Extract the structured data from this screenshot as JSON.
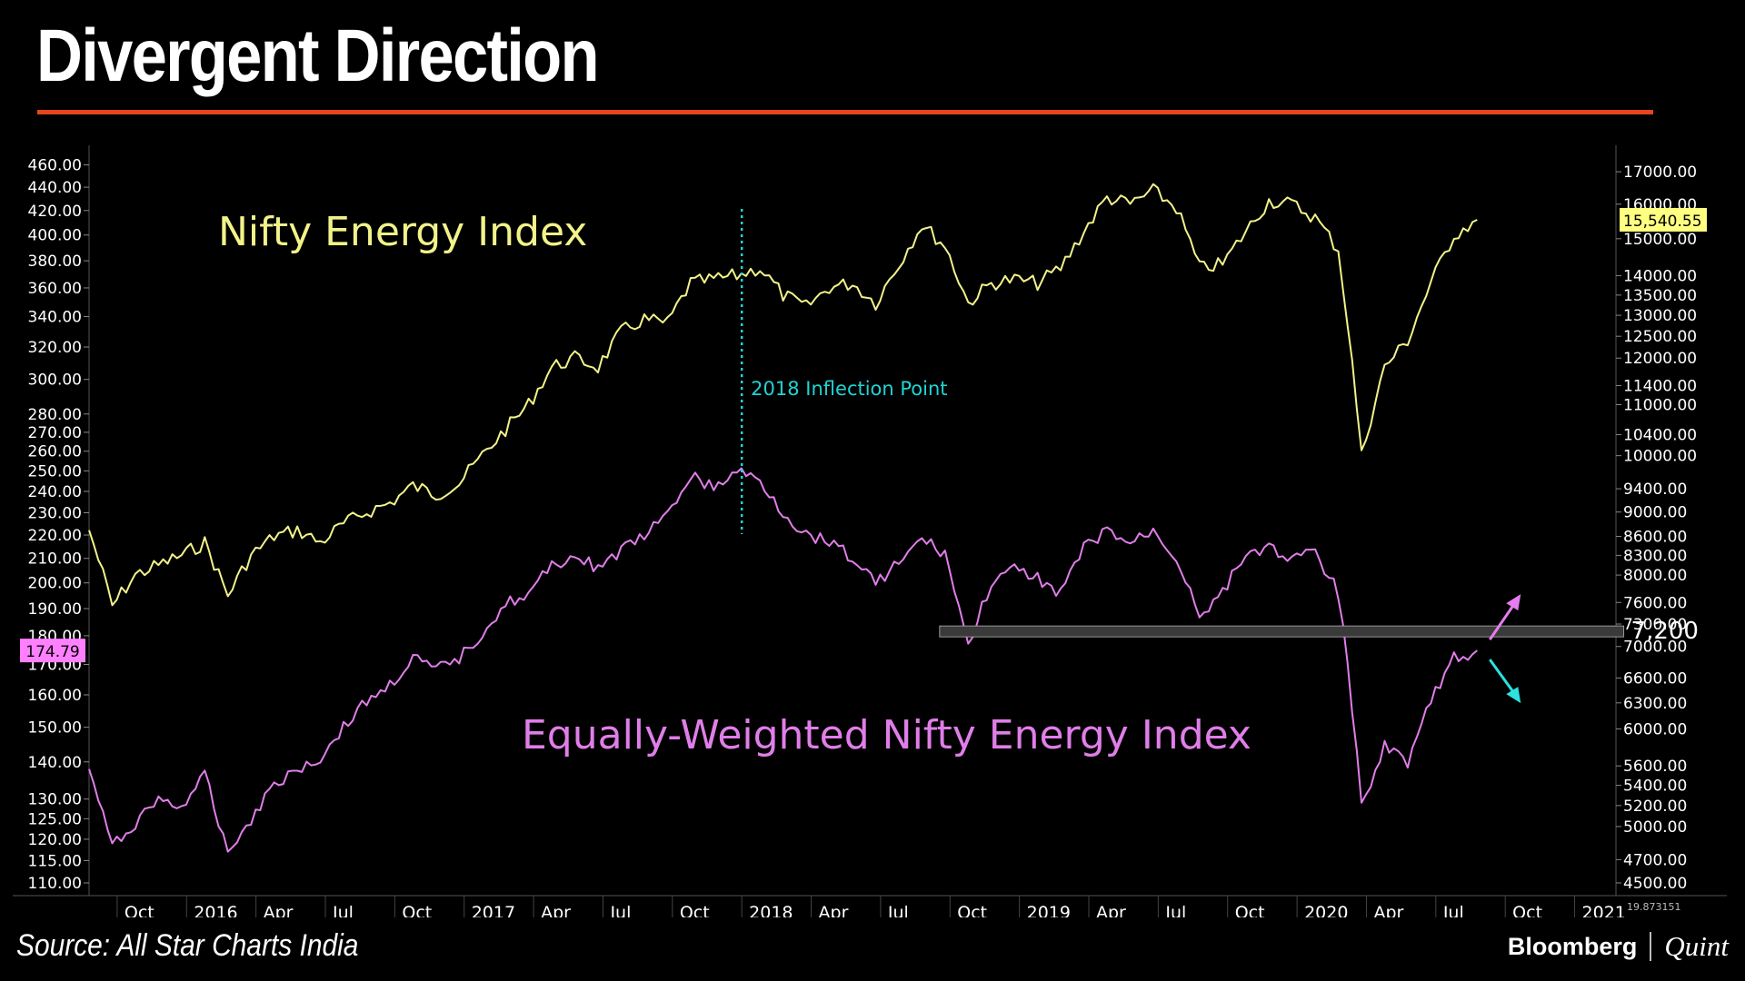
{
  "page": {
    "title": "Divergent Direction",
    "source": "Source: All Star Charts India",
    "logo_left": "Bloomberg",
    "logo_right": "Quint",
    "accent": "#e8441e"
  },
  "chart_data": {
    "type": "line",
    "title": "Divergent Direction",
    "x_ticks": [
      "Oct",
      "2016",
      "Apr",
      "Jul",
      "Oct",
      "2017",
      "Apr",
      "Jul",
      "Oct",
      "2018",
      "Apr",
      "Jul",
      "Oct",
      "2019",
      "Apr",
      "Jul",
      "Oct",
      "2020",
      "Apr",
      "Jul",
      "Oct",
      "2021"
    ],
    "x_range": [
      "2015-08",
      "2021-02"
    ],
    "left_axis": {
      "ticks": [
        "460.00",
        "440.00",
        "420.00",
        "400.00",
        "380.00",
        "360.00",
        "340.00",
        "320.00",
        "300.00",
        "280.00",
        "270.00",
        "260.00",
        "250.00",
        "240.00",
        "230.00",
        "220.00",
        "210.00",
        "200.00",
        "190.00",
        "180.00",
        "170.00",
        "160.00",
        "150.00",
        "140.00",
        "130.00",
        "125.00",
        "120.00",
        "115.00",
        "110.00"
      ],
      "scale": "log",
      "range": [
        110,
        468
      ],
      "last_value_label": "174.79",
      "last_value_color": "#ff80ff"
    },
    "right_axis": {
      "ticks": [
        "17000.00",
        "16000.00",
        "15000.00",
        "14000.00",
        "13500.00",
        "13000.00",
        "12500.00",
        "12000.00",
        "11400.00",
        "11000.00",
        "10400.00",
        "10000.00",
        "9400.00",
        "9000.00",
        "8600.00",
        "8300.00",
        "8000.00",
        "7600.00",
        "7300.00",
        "7000.00",
        "6600.00",
        "6300.00",
        "6000.00",
        "5600.00",
        "5400.00",
        "5200.00",
        "5000.00",
        "4700.00",
        "4500.00"
      ],
      "scale": "log",
      "range": [
        4500,
        17500
      ],
      "last_value_label": "15,540.55",
      "last_value_color": "#ffff80"
    },
    "series": [
      {
        "name": "Nifty Energy Index",
        "axis": "right",
        "color": "#f2f28a",
        "points": [
          [
            "2015-08",
            8700
          ],
          [
            "2015-09",
            7550
          ],
          [
            "2015-10",
            8000
          ],
          [
            "2015-11",
            8150
          ],
          [
            "2015-12",
            8300
          ],
          [
            "2016-01",
            8500
          ],
          [
            "2016-02",
            7700
          ],
          [
            "2016-03",
            8300
          ],
          [
            "2016-04",
            8600
          ],
          [
            "2016-05",
            8700
          ],
          [
            "2016-06",
            8500
          ],
          [
            "2016-07",
            8800
          ],
          [
            "2016-08",
            9000
          ],
          [
            "2016-09",
            9150
          ],
          [
            "2016-10",
            9450
          ],
          [
            "2016-11",
            9300
          ],
          [
            "2016-12",
            9500
          ],
          [
            "2017-01",
            10000
          ],
          [
            "2017-02",
            10500
          ],
          [
            "2017-03",
            11000
          ],
          [
            "2017-04",
            11800
          ],
          [
            "2017-05",
            12000
          ],
          [
            "2017-06",
            11800
          ],
          [
            "2017-07",
            12600
          ],
          [
            "2017-08",
            12900
          ],
          [
            "2017-09",
            12800
          ],
          [
            "2017-10",
            13800
          ],
          [
            "2017-11",
            13900
          ],
          [
            "2017-12",
            14000
          ],
          [
            "2018-01",
            14200
          ],
          [
            "2018-02",
            13500
          ],
          [
            "2018-03",
            13200
          ],
          [
            "2018-04",
            13700
          ],
          [
            "2018-05",
            13800
          ],
          [
            "2018-06",
            13300
          ],
          [
            "2018-07",
            14300
          ],
          [
            "2018-08",
            15400
          ],
          [
            "2018-09",
            14800
          ],
          [
            "2018-10",
            13300
          ],
          [
            "2018-11",
            13800
          ],
          [
            "2018-12",
            13900
          ],
          [
            "2019-01",
            13800
          ],
          [
            "2019-02",
            14200
          ],
          [
            "2019-03",
            15200
          ],
          [
            "2019-04",
            16200
          ],
          [
            "2019-05",
            16000
          ],
          [
            "2019-06",
            16400
          ],
          [
            "2019-07",
            15900
          ],
          [
            "2019-08",
            14200
          ],
          [
            "2019-09",
            14300
          ],
          [
            "2019-10",
            15200
          ],
          [
            "2019-11",
            16100
          ],
          [
            "2019-12",
            16000
          ],
          [
            "2020-01",
            15600
          ],
          [
            "2020-02",
            14700
          ],
          [
            "2020-03",
            10000
          ],
          [
            "2020-04",
            11800
          ],
          [
            "2020-05",
            12400
          ],
          [
            "2020-06",
            13800
          ],
          [
            "2020-07",
            15100
          ],
          [
            "2020-08",
            15540
          ]
        ]
      },
      {
        "name": "Equally-Weighted Nifty Energy Index",
        "axis": "left",
        "color": "#e07ee9",
        "points": [
          [
            "2015-08",
            138
          ],
          [
            "2015-09",
            118
          ],
          [
            "2015-10",
            124
          ],
          [
            "2015-11",
            130
          ],
          [
            "2015-12",
            128
          ],
          [
            "2016-01",
            136
          ],
          [
            "2016-02",
            117
          ],
          [
            "2016-03",
            125
          ],
          [
            "2016-04",
            134
          ],
          [
            "2016-05",
            138
          ],
          [
            "2016-06",
            141
          ],
          [
            "2016-07",
            150
          ],
          [
            "2016-08",
            158
          ],
          [
            "2016-09",
            163
          ],
          [
            "2016-10",
            172
          ],
          [
            "2016-11",
            168
          ],
          [
            "2016-12",
            172
          ],
          [
            "2017-01",
            181
          ],
          [
            "2017-02",
            192
          ],
          [
            "2017-03",
            195
          ],
          [
            "2017-04",
            207
          ],
          [
            "2017-05",
            211
          ],
          [
            "2017-06",
            206
          ],
          [
            "2017-07",
            213
          ],
          [
            "2017-08",
            220
          ],
          [
            "2017-09",
            228
          ],
          [
            "2017-10",
            248
          ],
          [
            "2017-11",
            241
          ],
          [
            "2017-12",
            250
          ],
          [
            "2018-01",
            245
          ],
          [
            "2018-02",
            230
          ],
          [
            "2018-03",
            220
          ],
          [
            "2018-04",
            218
          ],
          [
            "2018-05",
            210
          ],
          [
            "2018-06",
            200
          ],
          [
            "2018-07",
            208
          ],
          [
            "2018-08",
            218
          ],
          [
            "2018-09",
            212
          ],
          [
            "2018-10",
            176
          ],
          [
            "2018-11",
            200
          ],
          [
            "2018-12",
            205
          ],
          [
            "2019-01",
            202
          ],
          [
            "2019-02",
            196
          ],
          [
            "2019-03",
            214
          ],
          [
            "2019-04",
            222
          ],
          [
            "2019-05",
            216
          ],
          [
            "2019-06",
            222
          ],
          [
            "2019-07",
            210
          ],
          [
            "2019-08",
            188
          ],
          [
            "2019-09",
            196
          ],
          [
            "2019-10",
            212
          ],
          [
            "2019-11",
            215
          ],
          [
            "2019-12",
            210
          ],
          [
            "2020-01",
            212
          ],
          [
            "2020-02",
            196
          ],
          [
            "2020-03",
            128
          ],
          [
            "2020-04",
            145
          ],
          [
            "2020-05",
            140
          ],
          [
            "2020-06",
            158
          ],
          [
            "2020-07",
            172
          ],
          [
            "2020-08",
            174.79
          ]
        ]
      }
    ],
    "annotations": [
      {
        "label": "Nifty Energy Index",
        "color": "#f2f28a"
      },
      {
        "label": "Equally-Weighted Nifty Energy Index",
        "color": "#e07ee9"
      },
      {
        "label": "2018 Inflection Point",
        "date": "2018-01",
        "color": "#22d3d3"
      },
      {
        "label": "7,200",
        "value": 7200,
        "axis": "right",
        "start": "2018-09",
        "end": "2021-01"
      }
    ],
    "corner_label": "19.873151"
  }
}
